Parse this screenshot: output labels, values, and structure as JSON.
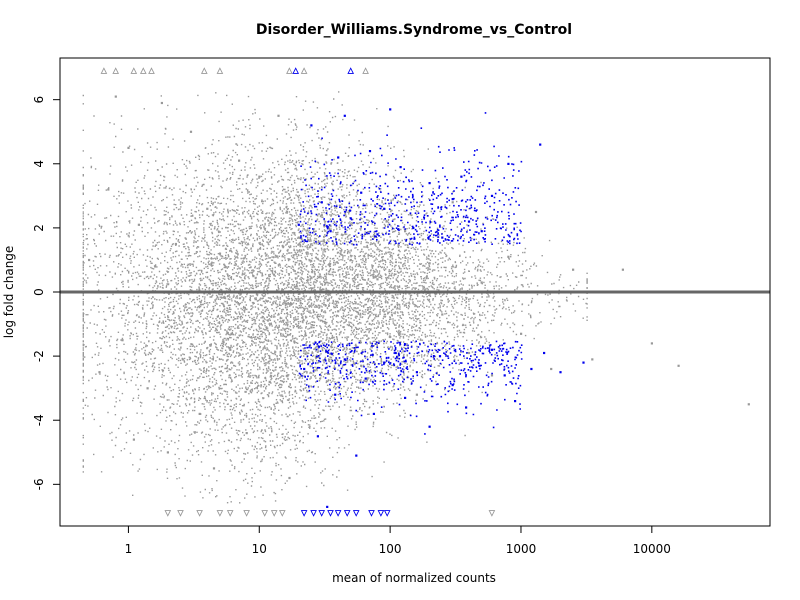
{
  "chart_data": {
    "type": "scatter",
    "title": "Disorder_Williams.Syndrome_vs_Control",
    "xlabel": "mean of normalized counts",
    "ylabel": "log fold change",
    "x_scale": "log10",
    "xlim": [
      0.3,
      80000
    ],
    "ylim": [
      -7.3,
      7.3
    ],
    "x_ticks": [
      1,
      10,
      100,
      1000,
      10000
    ],
    "x_tick_labels": [
      "1",
      "10",
      "100",
      "1000",
      "10000"
    ],
    "y_ticks": [
      -6,
      -4,
      -2,
      0,
      2,
      4,
      6
    ],
    "y_tick_labels": [
      "-6",
      "-4",
      "-2",
      "0",
      "2",
      "4",
      "6"
    ],
    "grid": false,
    "legend": "none",
    "reference_line": {
      "y": 0,
      "color": "#666666"
    },
    "colors": {
      "not_significant": "#999999",
      "significant": "#0000ee"
    },
    "series": [
      {
        "significant": false,
        "points": [
          [
            0.5,
            1.0
          ],
          [
            0.6,
            -2.5
          ],
          [
            0.7,
            3.2
          ],
          [
            0.8,
            6.1
          ],
          [
            0.9,
            -1.5
          ],
          [
            1.0,
            4.5
          ],
          [
            1.1,
            -4.6
          ],
          [
            1.2,
            2.1
          ],
          [
            1.4,
            -3.0
          ],
          [
            1.6,
            0.8
          ],
          [
            1.8,
            5.9
          ],
          [
            2.0,
            -5.0
          ],
          [
            2.3,
            1.5
          ],
          [
            2.6,
            -2.1
          ],
          [
            3.0,
            5.0
          ],
          [
            3.5,
            -3.8
          ],
          [
            4.0,
            2.6
          ],
          [
            4.5,
            -5.5
          ],
          [
            5.0,
            1.2
          ],
          [
            6.0,
            -1.8
          ],
          [
            7.0,
            4.1
          ],
          [
            8.0,
            -4.4
          ],
          [
            9.0,
            0.5
          ],
          [
            10,
            3.6
          ],
          [
            12,
            -2.8
          ],
          [
            14,
            5.5
          ],
          [
            17,
            -5.8
          ],
          [
            20,
            1.7
          ],
          [
            25,
            -1.1
          ],
          [
            30,
            2.4
          ],
          [
            40,
            -0.6
          ],
          [
            50,
            1.0
          ],
          [
            60,
            -2.3
          ],
          [
            80,
            0.4
          ],
          [
            100,
            -1.4
          ],
          [
            130,
            1.9
          ],
          [
            160,
            -3.2
          ],
          [
            200,
            0.9
          ],
          [
            250,
            -0.7
          ],
          [
            300,
            2.8
          ],
          [
            400,
            -1.9
          ],
          [
            500,
            0.3
          ],
          [
            600,
            -2.6
          ],
          [
            800,
            1.1
          ],
          [
            1000,
            -1.3
          ],
          [
            1300,
            2.5
          ],
          [
            1700,
            -2.4
          ],
          [
            2500,
            0.7
          ],
          [
            3500,
            -2.1
          ],
          [
            6000,
            0.7
          ],
          [
            10000,
            -1.6
          ],
          [
            16000,
            -2.3
          ],
          [
            55000,
            -3.5
          ]
        ]
      },
      {
        "significant": true,
        "points": [
          [
            20,
            2.1
          ],
          [
            25,
            5.2
          ],
          [
            30,
            2.8
          ],
          [
            35,
            1.9
          ],
          [
            40,
            4.2
          ],
          [
            45,
            5.5
          ],
          [
            50,
            2.3
          ],
          [
            60,
            3.1
          ],
          [
            70,
            4.4
          ],
          [
            80,
            1.8
          ],
          [
            90,
            2.6
          ],
          [
            100,
            5.7
          ],
          [
            120,
            3.9
          ],
          [
            150,
            2.0
          ],
          [
            200,
            3.4
          ],
          [
            250,
            1.7
          ],
          [
            300,
            2.9
          ],
          [
            350,
            3.6
          ],
          [
            400,
            2.2
          ],
          [
            500,
            1.9
          ],
          [
            600,
            3.0
          ],
          [
            800,
            4.0
          ],
          [
            1400,
            4.6
          ],
          [
            22,
            -2.4
          ],
          [
            28,
            -4.5
          ],
          [
            33,
            -6.7
          ],
          [
            38,
            -3.2
          ],
          [
            45,
            -2.1
          ],
          [
            55,
            -5.1
          ],
          [
            65,
            -2.7
          ],
          [
            75,
            -3.8
          ],
          [
            90,
            -2.2
          ],
          [
            110,
            -1.9
          ],
          [
            130,
            -3.3
          ],
          [
            160,
            -2.5
          ],
          [
            200,
            -4.2
          ],
          [
            240,
            -2.0
          ],
          [
            300,
            -2.9
          ],
          [
            380,
            -3.6
          ],
          [
            480,
            -2.3
          ],
          [
            600,
            -1.8
          ],
          [
            750,
            -2.6
          ],
          [
            900,
            -3.4
          ],
          [
            1200,
            -2.4
          ],
          [
            1500,
            -1.9
          ],
          [
            2000,
            -2.5
          ],
          [
            3000,
            -2.2
          ]
        ]
      }
    ],
    "clipped_points": [
      {
        "x": 0.65,
        "y": 6.9,
        "direction": "up",
        "significant": false
      },
      {
        "x": 0.8,
        "y": 6.9,
        "direction": "up",
        "significant": false
      },
      {
        "x": 1.1,
        "y": 6.9,
        "direction": "up",
        "significant": false
      },
      {
        "x": 1.3,
        "y": 6.9,
        "direction": "up",
        "significant": false
      },
      {
        "x": 1.5,
        "y": 6.9,
        "direction": "up",
        "significant": false
      },
      {
        "x": 3.8,
        "y": 6.9,
        "direction": "up",
        "significant": false
      },
      {
        "x": 5.0,
        "y": 6.9,
        "direction": "up",
        "significant": false
      },
      {
        "x": 17,
        "y": 6.9,
        "direction": "up",
        "significant": false
      },
      {
        "x": 19,
        "y": 6.9,
        "direction": "up",
        "significant": true
      },
      {
        "x": 22,
        "y": 6.9,
        "direction": "up",
        "significant": false
      },
      {
        "x": 50,
        "y": 6.9,
        "direction": "up",
        "significant": true
      },
      {
        "x": 65,
        "y": 6.9,
        "direction": "up",
        "significant": false
      },
      {
        "x": 2.0,
        "y": -6.9,
        "direction": "down",
        "significant": false
      },
      {
        "x": 2.5,
        "y": -6.9,
        "direction": "down",
        "significant": false
      },
      {
        "x": 3.5,
        "y": -6.9,
        "direction": "down",
        "significant": false
      },
      {
        "x": 5.0,
        "y": -6.9,
        "direction": "down",
        "significant": false
      },
      {
        "x": 6.0,
        "y": -6.9,
        "direction": "down",
        "significant": false
      },
      {
        "x": 8.0,
        "y": -6.9,
        "direction": "down",
        "significant": false
      },
      {
        "x": 11,
        "y": -6.9,
        "direction": "down",
        "significant": false
      },
      {
        "x": 13,
        "y": -6.9,
        "direction": "down",
        "significant": false
      },
      {
        "x": 15,
        "y": -6.9,
        "direction": "down",
        "significant": false
      },
      {
        "x": 22,
        "y": -6.9,
        "direction": "down",
        "significant": true
      },
      {
        "x": 26,
        "y": -6.9,
        "direction": "down",
        "significant": true
      },
      {
        "x": 30,
        "y": -6.9,
        "direction": "down",
        "significant": true
      },
      {
        "x": 35,
        "y": -6.9,
        "direction": "down",
        "significant": true
      },
      {
        "x": 40,
        "y": -6.9,
        "direction": "down",
        "significant": true
      },
      {
        "x": 47,
        "y": -6.9,
        "direction": "down",
        "significant": true
      },
      {
        "x": 55,
        "y": -6.9,
        "direction": "down",
        "significant": true
      },
      {
        "x": 72,
        "y": -6.9,
        "direction": "down",
        "significant": true
      },
      {
        "x": 85,
        "y": -6.9,
        "direction": "down",
        "significant": true
      },
      {
        "x": 95,
        "y": -6.9,
        "direction": "down",
        "significant": true
      },
      {
        "x": 600,
        "y": -6.9,
        "direction": "down",
        "significant": false
      }
    ]
  }
}
